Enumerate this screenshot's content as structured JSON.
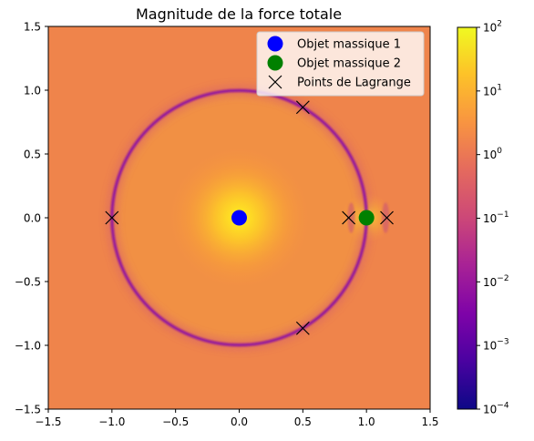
{
  "chart_data": {
    "type": "heatmap",
    "title": "Magnitude de la force totale",
    "xlim": [
      -1.5,
      1.5
    ],
    "ylim": [
      -1.5,
      1.5
    ],
    "xticks": [
      -1.5,
      -1.0,
      -0.5,
      0.0,
      0.5,
      1.0,
      1.5
    ],
    "xtick_labels": [
      "−1.5",
      "−1.0",
      "−0.5",
      "0.0",
      "0.5",
      "1.0",
      "1.5"
    ],
    "yticks": [
      -1.5,
      -1.0,
      -0.5,
      0.0,
      0.5,
      1.0,
      1.5
    ],
    "ytick_labels": [
      "−1.5",
      "−1.0",
      "−0.5",
      "0.0",
      "0.5",
      "1.0",
      "1.5"
    ],
    "xlabel": "",
    "ylabel": "",
    "colormap": "plasma",
    "color_scale": "log",
    "colorbar": {
      "vmin": 0.0001,
      "vmax": 100,
      "tick_values": [
        0.0001,
        0.001,
        0.01,
        0.1,
        1,
        10,
        100
      ],
      "tick_labels": [
        {
          "base": "10",
          "exp": "−4"
        },
        {
          "base": "10",
          "exp": "−3"
        },
        {
          "base": "10",
          "exp": "−2"
        },
        {
          "base": "10",
          "exp": "−1"
        },
        {
          "base": "10",
          "exp": "0"
        },
        {
          "base": "10",
          "exp": "1"
        },
        {
          "base": "10",
          "exp": "2"
        }
      ]
    },
    "series": [
      {
        "name": "Objet massique 1",
        "marker": "circle",
        "color": "#0000ff",
        "points": [
          [
            0.0,
            0.0
          ]
        ]
      },
      {
        "name": "Objet massique 2",
        "marker": "circle",
        "color": "#008000",
        "points": [
          [
            1.0,
            0.0
          ]
        ]
      },
      {
        "name": "Points de Lagrange",
        "marker": "x",
        "color": "#000000",
        "points": [
          [
            0.5,
            0.866
          ],
          [
            0.5,
            -0.866
          ],
          [
            -1.0,
            0.0
          ],
          [
            0.86,
            0.0
          ],
          [
            1.16,
            0.0
          ]
        ]
      }
    ],
    "legend_position": "upper-right",
    "grid": false
  }
}
